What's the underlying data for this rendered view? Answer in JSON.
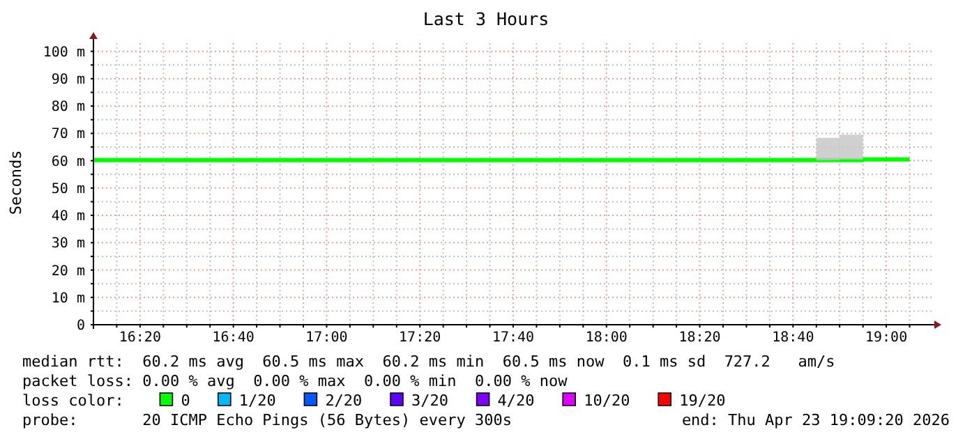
{
  "chart_data": {
    "type": "step",
    "title": "Last 3 Hours",
    "ylabel": "Seconds",
    "x": [
      16.1667,
      18.75,
      18.8333,
      18.9167,
      19.0,
      19.0833
    ],
    "series": [
      {
        "name": "0",
        "color": "#00ff00",
        "values": [
          60.2,
          60.2,
          60.2,
          60.5,
          60.5,
          60.5
        ],
        "lower": [
          null,
          60.2,
          60.5,
          60.5,
          null,
          null
        ],
        "upper": [
          null,
          68.4,
          69.5,
          62.8,
          null,
          null
        ]
      },
      {
        "name": "1/20",
        "color": "#00b8ff",
        "values": [
          null,
          null,
          null,
          null,
          null,
          null
        ]
      },
      {
        "name": "2/20",
        "color": "#0059ff",
        "values": [
          null,
          null,
          null,
          null,
          null,
          null
        ]
      },
      {
        "name": "3/20",
        "color": "#5e00ff",
        "values": [
          null,
          null,
          null,
          null,
          null,
          null
        ]
      },
      {
        "name": "4/20",
        "color": "#7e00ff",
        "values": [
          null,
          null,
          null,
          null,
          null,
          null
        ]
      },
      {
        "name": "10/20",
        "color": "#dd00ff",
        "values": [
          null,
          null,
          null,
          null,
          null,
          null
        ]
      },
      {
        "name": "19/20",
        "color": "#ff0000",
        "values": [
          null,
          null,
          null,
          null,
          null,
          null
        ]
      }
    ],
    "legend": "bottom",
    "legend_title": "loss color:",
    "grid": true,
    "xlim": [
      16.1667,
      19.1667
    ],
    "xticks": [
      {
        "value": 16.25,
        "label": null
      },
      {
        "value": 16.3333,
        "label": "16:20"
      },
      {
        "value": 16.4167,
        "label": null
      },
      {
        "value": 16.5,
        "label": null
      },
      {
        "value": 16.5833,
        "label": null
      },
      {
        "value": 16.6667,
        "label": "16:40"
      },
      {
        "value": 16.75,
        "label": null
      },
      {
        "value": 16.8333,
        "label": null
      },
      {
        "value": 16.9167,
        "label": null
      },
      {
        "value": 17.0,
        "label": "17:00"
      },
      {
        "value": 17.0833,
        "label": null
      },
      {
        "value": 17.1667,
        "label": null
      },
      {
        "value": 17.25,
        "label": null
      },
      {
        "value": 17.3333,
        "label": "17:20"
      },
      {
        "value": 17.4167,
        "label": null
      },
      {
        "value": 17.5,
        "label": null
      },
      {
        "value": 17.5833,
        "label": null
      },
      {
        "value": 17.6667,
        "label": "17:40"
      },
      {
        "value": 17.75,
        "label": null
      },
      {
        "value": 17.8333,
        "label": null
      },
      {
        "value": 17.9167,
        "label": null
      },
      {
        "value": 18.0,
        "label": "18:00"
      },
      {
        "value": 18.0833,
        "label": null
      },
      {
        "value": 18.1667,
        "label": null
      },
      {
        "value": 18.25,
        "label": null
      },
      {
        "value": 18.3333,
        "label": "18:20"
      },
      {
        "value": 18.4167,
        "label": null
      },
      {
        "value": 18.5,
        "label": null
      },
      {
        "value": 18.5833,
        "label": null
      },
      {
        "value": 18.6667,
        "label": "18:40"
      },
      {
        "value": 18.75,
        "label": null
      },
      {
        "value": 18.8333,
        "label": null
      },
      {
        "value": 18.9167,
        "label": null
      },
      {
        "value": 19.0,
        "label": "19:00"
      },
      {
        "value": 19.0833,
        "label": null
      }
    ],
    "ylim": [
      0,
      104
    ],
    "yticks": [
      0,
      {
        "value": 5,
        "label": null
      },
      {
        "value": 10,
        "label": "10 m"
      },
      {
        "value": 15,
        "label": null
      },
      {
        "value": 20,
        "label": "20 m"
      },
      {
        "value": 25,
        "label": null
      },
      {
        "value": 30,
        "label": "30 m"
      },
      {
        "value": 35,
        "label": null
      },
      {
        "value": 40,
        "label": "40 m"
      },
      {
        "value": 45,
        "label": null
      },
      {
        "value": 50,
        "label": "50 m"
      },
      {
        "value": 55,
        "label": null
      },
      {
        "value": 60,
        "label": "60 m"
      },
      {
        "value": 65,
        "label": null
      },
      {
        "value": 70,
        "label": "70 m"
      },
      {
        "value": 75,
        "label": null
      },
      {
        "value": 80,
        "label": "80 m"
      },
      {
        "value": 85,
        "label": null
      },
      {
        "value": 90,
        "label": "90 m"
      },
      {
        "value": 95,
        "label": null
      },
      {
        "value": 100,
        "label": "100 m"
      }
    ],
    "annotations": [
      "median rtt:  60.2 ms avg  60.5 ms max  60.2 ms min  60.5 ms now  0.1 ms sd  727.2   am/s",
      "packet loss: 0.00 % avg  0.00 % max  0.00 % min  0.00 % now",
      "probe:       20 ICMP Echo Pings (56 Bytes) every 300s",
      "end: Thu Apr 23 19:09:20 2026"
    ]
  }
}
